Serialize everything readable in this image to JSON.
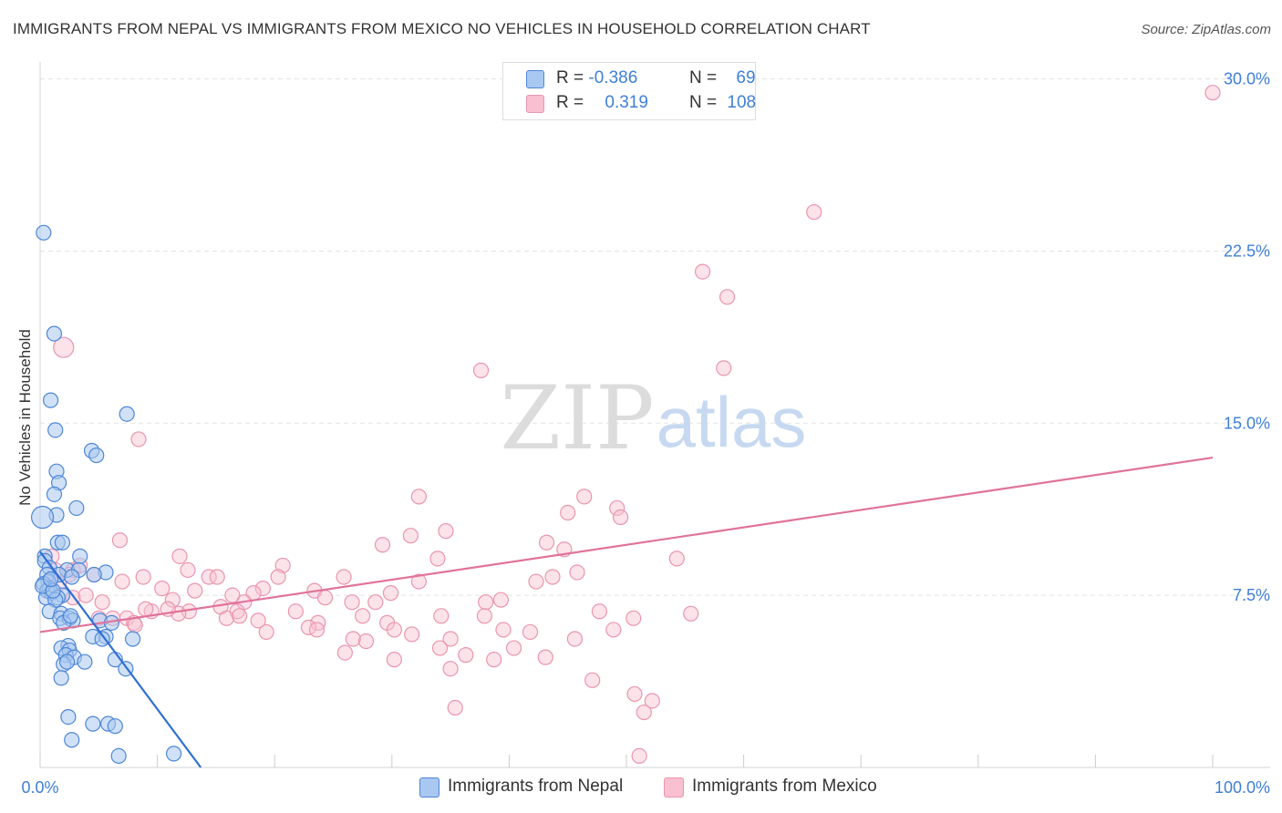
{
  "title": "IMMIGRANTS FROM NEPAL VS IMMIGRANTS FROM MEXICO NO VEHICLES IN HOUSEHOLD CORRELATION CHART",
  "source": "Source: ZipAtlas.com",
  "watermark": {
    "zip": "ZIP",
    "atlas": "atlas"
  },
  "colors": {
    "nepal_fill": "#a9c8f1",
    "nepal_stroke": "#4d86d6",
    "nepal_line": "#2f6fd3",
    "mexico_fill": "#f8c0d0",
    "mexico_stroke": "#e995b0",
    "mexico_line": "#e0739a",
    "axis_text": "#3f7fd6",
    "grid": "#e3e3e3"
  },
  "legend_top": {
    "rows": [
      {
        "r_label": "R =",
        "r_value": "-0.386",
        "n_label": "N =",
        "n_value": "69"
      },
      {
        "r_label": "R =",
        "r_value": "0.319",
        "n_label": "N =",
        "n_value": "108"
      }
    ]
  },
  "chart_data": {
    "type": "scatter",
    "title": "IMMIGRANTS FROM NEPAL VS IMMIGRANTS FROM MEXICO NO VEHICLES IN HOUSEHOLD CORRELATION CHART",
    "xlabel": "",
    "ylabel": "No Vehicles in Household",
    "xlim": [
      0,
      100
    ],
    "ylim": [
      0,
      30.5
    ],
    "x_tick_labels": [
      "0.0%",
      "100.0%"
    ],
    "y_ticks": [
      7.5,
      15.0,
      22.5,
      30.0
    ],
    "y_tick_labels": [
      "7.5%",
      "15.0%",
      "22.5%",
      "30.0%"
    ],
    "series": [
      {
        "name": "Immigrants from Nepal",
        "r": -0.386,
        "n": 69,
        "trend": {
          "x0": 0.0,
          "y0": 9.4,
          "x1": 13.7,
          "y1": 0.0
        },
        "points": [
          [
            0.3,
            23.3
          ],
          [
            1.2,
            18.9
          ],
          [
            0.9,
            16.0
          ],
          [
            1.3,
            14.7
          ],
          [
            7.4,
            15.4
          ],
          [
            4.4,
            13.8
          ],
          [
            4.8,
            13.6
          ],
          [
            1.4,
            12.9
          ],
          [
            1.6,
            12.4
          ],
          [
            1.2,
            11.9
          ],
          [
            3.1,
            11.3
          ],
          [
            1.4,
            11.0
          ],
          [
            0.2,
            10.9
          ],
          [
            1.5,
            9.8
          ],
          [
            1.9,
            9.8
          ],
          [
            3.4,
            9.2
          ],
          [
            0.4,
            9.2
          ],
          [
            0.4,
            9.0
          ],
          [
            0.8,
            8.7
          ],
          [
            2.3,
            8.6
          ],
          [
            3.3,
            8.6
          ],
          [
            5.6,
            8.5
          ],
          [
            1.6,
            8.4
          ],
          [
            0.6,
            8.4
          ],
          [
            2.7,
            8.3
          ],
          [
            4.6,
            8.4
          ],
          [
            0.7,
            8.1
          ],
          [
            0.3,
            8.0
          ],
          [
            0.8,
            7.8
          ],
          [
            0.6,
            7.7
          ],
          [
            1.0,
            7.6
          ],
          [
            1.9,
            7.5
          ],
          [
            0.5,
            7.4
          ],
          [
            1.5,
            7.4
          ],
          [
            1.3,
            7.3
          ],
          [
            0.8,
            6.8
          ],
          [
            1.8,
            6.7
          ],
          [
            1.7,
            6.5
          ],
          [
            2.5,
            6.5
          ],
          [
            2.8,
            6.4
          ],
          [
            5.1,
            6.4
          ],
          [
            6.1,
            6.3
          ],
          [
            2.0,
            6.3
          ],
          [
            5.6,
            5.7
          ],
          [
            7.9,
            5.6
          ],
          [
            4.5,
            5.7
          ],
          [
            5.3,
            5.6
          ],
          [
            2.4,
            5.3
          ],
          [
            1.8,
            5.2
          ],
          [
            2.5,
            5.1
          ],
          [
            2.2,
            4.9
          ],
          [
            2.9,
            4.8
          ],
          [
            3.8,
            4.6
          ],
          [
            6.4,
            4.7
          ],
          [
            2.0,
            4.5
          ],
          [
            2.3,
            4.6
          ],
          [
            7.3,
            4.3
          ],
          [
            1.8,
            3.9
          ],
          [
            2.4,
            2.2
          ],
          [
            4.5,
            1.9
          ],
          [
            5.8,
            1.9
          ],
          [
            6.4,
            1.8
          ],
          [
            2.7,
            1.2
          ],
          [
            6.7,
            0.5
          ],
          [
            11.4,
            0.6
          ],
          [
            0.2,
            7.9
          ],
          [
            1.1,
            7.7
          ],
          [
            2.6,
            6.6
          ],
          [
            0.9,
            8.2
          ]
        ]
      },
      {
        "name": "Immigrants from Mexico",
        "r": 0.319,
        "n": 108,
        "trend": {
          "x0": 0.0,
          "y0": 5.9,
          "x1": 100.0,
          "y1": 13.5
        },
        "points": [
          [
            100.0,
            29.4
          ],
          [
            66.0,
            24.2
          ],
          [
            56.5,
            21.6
          ],
          [
            58.6,
            20.5
          ],
          [
            2.0,
            18.3
          ],
          [
            58.3,
            17.4
          ],
          [
            37.6,
            17.3
          ],
          [
            8.4,
            14.3
          ],
          [
            32.3,
            11.8
          ],
          [
            46.4,
            11.8
          ],
          [
            49.2,
            11.3
          ],
          [
            45.0,
            11.1
          ],
          [
            49.5,
            10.9
          ],
          [
            34.6,
            10.3
          ],
          [
            31.6,
            10.1
          ],
          [
            6.8,
            9.9
          ],
          [
            29.2,
            9.7
          ],
          [
            43.2,
            9.8
          ],
          [
            44.7,
            9.5
          ],
          [
            1.0,
            9.2
          ],
          [
            11.9,
            9.2
          ],
          [
            54.3,
            9.1
          ],
          [
            33.9,
            9.1
          ],
          [
            20.7,
            8.8
          ],
          [
            12.6,
            8.6
          ],
          [
            2.8,
            8.6
          ],
          [
            2.5,
            8.4
          ],
          [
            4.6,
            8.4
          ],
          [
            8.8,
            8.3
          ],
          [
            14.4,
            8.3
          ],
          [
            15.1,
            8.3
          ],
          [
            20.3,
            8.3
          ],
          [
            25.9,
            8.3
          ],
          [
            43.7,
            8.3
          ],
          [
            45.8,
            8.5
          ],
          [
            32.3,
            8.1
          ],
          [
            42.3,
            8.1
          ],
          [
            1.6,
            8.0
          ],
          [
            10.4,
            7.8
          ],
          [
            19.0,
            7.8
          ],
          [
            18.2,
            7.6
          ],
          [
            23.4,
            7.7
          ],
          [
            29.9,
            7.6
          ],
          [
            2.8,
            7.4
          ],
          [
            3.9,
            7.5
          ],
          [
            11.3,
            7.3
          ],
          [
            16.4,
            7.5
          ],
          [
            5.3,
            7.2
          ],
          [
            17.4,
            7.2
          ],
          [
            26.6,
            7.2
          ],
          [
            28.6,
            7.2
          ],
          [
            38.0,
            7.2
          ],
          [
            39.3,
            7.3
          ],
          [
            15.4,
            7.0
          ],
          [
            9.5,
            6.8
          ],
          [
            12.7,
            6.8
          ],
          [
            16.8,
            6.8
          ],
          [
            21.8,
            6.8
          ],
          [
            11.8,
            6.7
          ],
          [
            15.9,
            6.5
          ],
          [
            5.0,
            6.5
          ],
          [
            7.4,
            6.5
          ],
          [
            17.0,
            6.6
          ],
          [
            27.5,
            6.6
          ],
          [
            34.2,
            6.6
          ],
          [
            37.9,
            6.6
          ],
          [
            47.7,
            6.8
          ],
          [
            55.5,
            6.7
          ],
          [
            50.6,
            6.5
          ],
          [
            8.0,
            6.3
          ],
          [
            23.7,
            6.3
          ],
          [
            29.6,
            6.3
          ],
          [
            22.9,
            6.1
          ],
          [
            30.2,
            6.0
          ],
          [
            39.5,
            6.0
          ],
          [
            19.3,
            5.9
          ],
          [
            31.7,
            5.8
          ],
          [
            23.6,
            6.0
          ],
          [
            26.7,
            5.6
          ],
          [
            35.0,
            5.6
          ],
          [
            45.6,
            5.6
          ],
          [
            27.8,
            5.5
          ],
          [
            34.1,
            5.2
          ],
          [
            26.0,
            5.0
          ],
          [
            36.3,
            4.9
          ],
          [
            38.7,
            4.7
          ],
          [
            43.1,
            4.8
          ],
          [
            30.2,
            4.7
          ],
          [
            35.0,
            4.3
          ],
          [
            47.1,
            3.8
          ],
          [
            50.7,
            3.2
          ],
          [
            52.2,
            2.9
          ],
          [
            51.5,
            2.4
          ],
          [
            35.4,
            2.6
          ],
          [
            51.1,
            0.5
          ],
          [
            9.0,
            6.9
          ],
          [
            13.2,
            7.7
          ],
          [
            40.4,
            5.2
          ],
          [
            10.9,
            6.9
          ],
          [
            8.1,
            6.2
          ],
          [
            1.3,
            8.6
          ],
          [
            3.4,
            8.8
          ],
          [
            6.2,
            6.5
          ],
          [
            7.0,
            8.1
          ],
          [
            18.6,
            6.4
          ],
          [
            24.3,
            7.4
          ],
          [
            41.8,
            5.9
          ],
          [
            48.9,
            6.0
          ]
        ]
      }
    ]
  },
  "legend_bottom": {
    "items": [
      {
        "label": "Immigrants from Nepal"
      },
      {
        "label": "Immigrants from Mexico"
      }
    ]
  }
}
